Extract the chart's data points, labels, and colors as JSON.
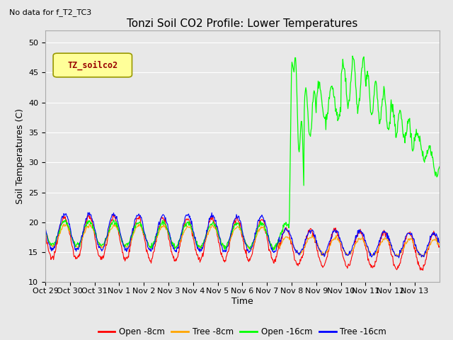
{
  "title": "Tonzi Soil CO2 Profile: Lower Temperatures",
  "subtitle": "No data for f_T2_TC3",
  "ylabel": "Soil Temperatures (C)",
  "xlabel": "Time",
  "ylim": [
    10,
    52
  ],
  "yticks": [
    10,
    15,
    20,
    25,
    30,
    35,
    40,
    45,
    50
  ],
  "background_color": "#e8e8e8",
  "plot_bg_color": "#e8e8e8",
  "legend_box_label": "TZ_soilco2",
  "legend_box_color": "#ffff99",
  "legend_box_border": "#999900",
  "legend_box_text_color": "#990000",
  "series_colors": {
    "open_8cm": "#ff0000",
    "tree_8cm": "#ffa500",
    "open_16cm": "#00ff00",
    "tree_16cm": "#0000ff"
  },
  "series_labels": {
    "open_8cm": "Open -8cm",
    "tree_8cm": "Tree -8cm",
    "open_16cm": "Open -16cm",
    "tree_16cm": "Tree -16cm"
  },
  "xtick_labels": [
    "Oct 29",
    "Oct 30",
    "Oct 31",
    "Nov 1",
    "Nov 2",
    "Nov 3",
    "Nov 4",
    "Nov 5",
    "Nov 6",
    "Nov 7",
    "Nov 8",
    "Nov 9",
    "Nov 10",
    "Nov 11",
    "Nov 12",
    "Nov 13"
  ],
  "title_fontsize": 11,
  "axis_fontsize": 9,
  "tick_fontsize": 8
}
